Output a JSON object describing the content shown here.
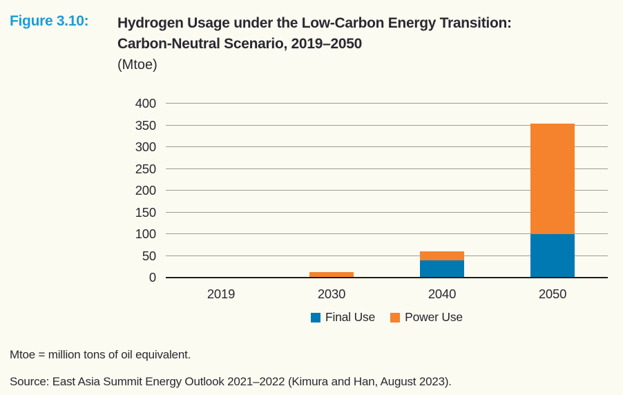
{
  "figure": {
    "label": "Figure 3.10:",
    "title_line1": "Hydrogen Usage under the Low-Carbon Energy Transition:",
    "title_line2": "Carbon-Neutral Scenario, 2019–2050",
    "unit_line": "(Mtoe)"
  },
  "chart_data": {
    "type": "bar",
    "stacked": true,
    "title": "Hydrogen Usage under the Low-Carbon Energy Transition: Carbon-Neutral Scenario, 2019–2050",
    "unit": "Mtoe",
    "categories": [
      "2019",
      "2030",
      "2040",
      "2050"
    ],
    "series": [
      {
        "name": "Final Use",
        "color": "#0079b3",
        "values": [
          0,
          0,
          40,
          100
        ]
      },
      {
        "name": "Power Use",
        "color": "#f5822c",
        "values": [
          0,
          12,
          20,
          254
        ]
      }
    ],
    "totals": [
      0,
      12,
      60,
      354
    ],
    "ylim": [
      0,
      400
    ],
    "yticks": [
      0,
      50,
      100,
      150,
      200,
      250,
      300,
      350,
      400
    ],
    "grid": true,
    "legend_position": "bottom"
  },
  "footnotes": {
    "note": "Mtoe = million tons of oil equivalent.",
    "source": "Source: East Asia Summit Energy Outlook 2021–2022 (Kimura and Han, August 2023)."
  },
  "colors": {
    "figure_label": "#1b9cd8",
    "final_use": "#0079b3",
    "power_use": "#f5822c",
    "background": "#fbfbf1",
    "gridline": "#9c9c94",
    "axis": "#1c1c1c",
    "text": "#2a2830"
  }
}
